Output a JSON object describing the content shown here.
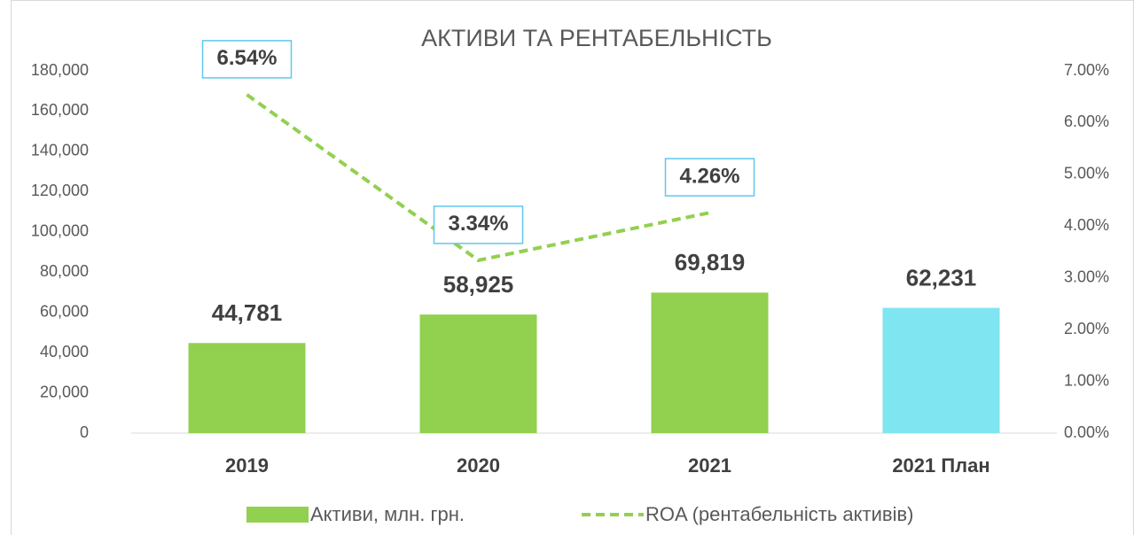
{
  "chart_data": {
    "type": "bar",
    "title": "АКТИВИ ТА РЕНТАБЕЛЬНІСТЬ",
    "categories": [
      "2019",
      "2020",
      "2021",
      "2021 План"
    ],
    "series": [
      {
        "name": "Активи, млн. грн.",
        "type": "bar",
        "color": "#92d050",
        "colors": [
          "#92d050",
          "#92d050",
          "#92d050",
          "#7fe5f0"
        ],
        "values": [
          44781,
          58925,
          69819,
          62231
        ],
        "value_labels": [
          "44,781",
          "58,925",
          "69,819",
          "62,231"
        ]
      },
      {
        "name": "ROA (рентабельність активів)",
        "type": "line",
        "axis": "y2",
        "color": "#92d050",
        "dashed": true,
        "values": [
          6.54,
          3.34,
          4.26,
          null
        ],
        "value_labels": [
          "6.54%",
          "3.34%",
          "4.26%",
          null
        ]
      }
    ],
    "ylim": [
      0,
      180000
    ],
    "yticks": [
      0,
      {
        "value": 20000,
        "label": "20,000"
      },
      {
        "value": 40000,
        "label": "40,000"
      },
      {
        "value": 60000,
        "label": "60,000"
      },
      {
        "value": 80000,
        "label": "80,000"
      },
      {
        "value": 100000,
        "label": "100,000"
      },
      {
        "value": 120000,
        "label": "120,000"
      },
      {
        "value": 140000,
        "label": "140,000"
      },
      {
        "value": 160000,
        "label": "160,000"
      },
      {
        "value": 180000,
        "label": "180,000"
      }
    ],
    "y2lim": [
      0,
      7
    ],
    "y2ticks": [
      {
        "value": 0,
        "label": "0.00%"
      },
      {
        "value": 1,
        "label": "1.00%"
      },
      {
        "value": 2,
        "label": "2.00%"
      },
      {
        "value": 3,
        "label": "3.00%"
      },
      {
        "value": 4,
        "label": "4.00%"
      },
      {
        "value": 5,
        "label": "5.00%"
      },
      {
        "value": 6,
        "label": "6.00%"
      },
      {
        "value": 7,
        "label": "7.00%"
      }
    ],
    "grid": false,
    "legend": "bottom"
  }
}
